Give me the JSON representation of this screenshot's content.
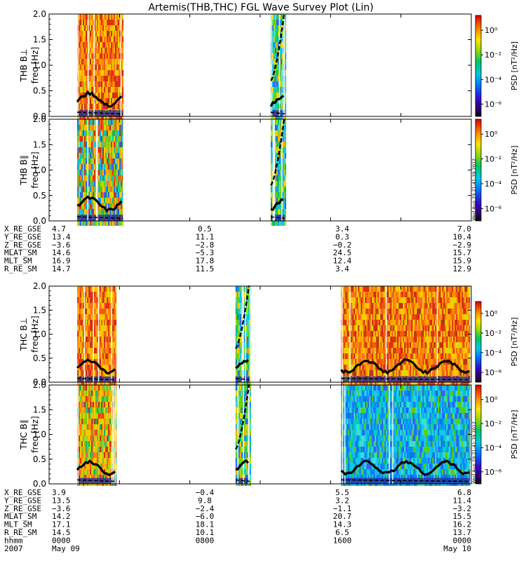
{
  "title": "Artemis(THB,THC) FGL Wave Survey Plot (Lin)",
  "colors": {
    "line": "#000000",
    "background": "#ffffff"
  },
  "chart_data": [
    {
      "type": "heatmap",
      "id": "thb_bperp",
      "ylabel": "THB B⊥",
      "ylabel2": "freq [Hz]",
      "ylim": [
        0,
        2.0
      ],
      "yticks": [
        "0.0",
        "0.5",
        "1.0",
        "1.5",
        "2.0"
      ],
      "data_segments_hours": [
        [
          1.6,
          4.2
        ],
        [
          12.6,
          13.4
        ]
      ],
      "tint": "orange"
    },
    {
      "type": "heatmap",
      "id": "thb_bpar",
      "ylabel": "THB B∥",
      "ylabel2": "freq [Hz]",
      "ylim": [
        0,
        2.0
      ],
      "yticks": [
        "0.0",
        "0.5",
        "1.0",
        "1.5",
        "2.0"
      ],
      "data_segments_hours": [
        [
          1.6,
          4.2
        ],
        [
          12.6,
          13.4
        ]
      ],
      "tint": "mixed"
    },
    {
      "type": "heatmap",
      "id": "thc_bperp",
      "ylabel": "THC B⊥",
      "ylabel2": "freq [Hz]",
      "ylim": [
        0,
        2.0
      ],
      "yticks": [
        "0.0",
        "0.5",
        "1.0",
        "1.5",
        "2.0"
      ],
      "data_segments_hours": [
        [
          1.6,
          3.8
        ],
        [
          10.6,
          11.4
        ],
        [
          16.6,
          23.9
        ]
      ],
      "tint": "orange"
    },
    {
      "type": "heatmap",
      "id": "thc_bpar",
      "ylabel": "THC B∥",
      "ylabel2": "freq [Hz]",
      "ylim": [
        0,
        2.0
      ],
      "yticks": [
        "0.0",
        "0.5",
        "1.0",
        "1.5",
        "2.0"
      ],
      "data_segments_hours": [
        [
          1.6,
          3.8
        ],
        [
          10.6,
          11.4
        ],
        [
          16.6,
          23.9
        ]
      ],
      "tint": "blue"
    }
  ],
  "colorbar": {
    "label": "PSD [nT²/Hz]",
    "ticks": [
      "10⁰",
      "10⁻²",
      "10⁻⁴",
      "10⁻⁶"
    ],
    "exponents": [
      0,
      -2,
      -4,
      -6
    ]
  },
  "stamp": "Wed Aug 29 21:41:39 2012",
  "thb_ephem": {
    "labels": [
      "X_RE_GSE",
      "Y_RE_GSE",
      "Z_RE_GSE",
      "MLAT_SM",
      "MLT_SM",
      "R_RE_SM"
    ],
    "cols": [
      [
        "4.7",
        "13.4",
        "−3.6",
        "14.6",
        "16.9",
        "14.7"
      ],
      [
        "0.5",
        "11.1",
        "−2.8",
        "−5.3",
        "17.8",
        "11.5"
      ],
      [
        "3.4",
        "0.3",
        "−0.2",
        "24.5",
        "12.4",
        "3.4"
      ],
      [
        "7.0",
        "10.4",
        "−2.9",
        "15.7",
        "15.9",
        "12.9"
      ]
    ]
  },
  "thc_ephem": {
    "labels": [
      "X_RE_GSE",
      "Y_RE_GSE",
      "Z_RE_GSE",
      "MLAT_SM",
      "MLT_SM",
      "R_RE_SM",
      "hhmm",
      "2007"
    ],
    "cols": [
      [
        "3.9",
        "13.5",
        "−3.6",
        "14.2",
        "17.1",
        "14.5",
        "0000",
        "May 09"
      ],
      [
        "−0.4",
        "9.8",
        "−2.4",
        "−6.0",
        "18.1",
        "10.1",
        "0800",
        ""
      ],
      [
        "5.5",
        "3.2",
        "−1.1",
        "20.7",
        "14.3",
        "6.5",
        "1600",
        ""
      ],
      [
        "6.8",
        "11.4",
        "−3.2",
        "15.5",
        "16.2",
        "13.7",
        "0000",
        "May 10"
      ]
    ]
  }
}
